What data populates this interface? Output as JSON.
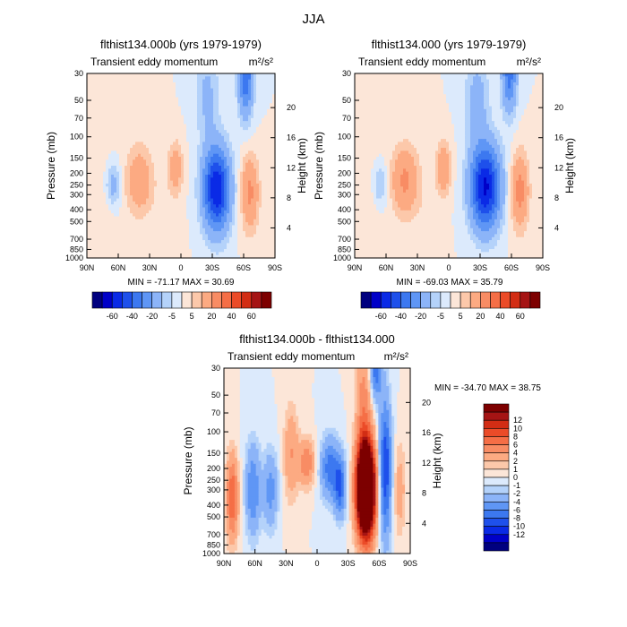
{
  "figure": {
    "title": "JJA"
  },
  "chart_data": [
    {
      "type": "heatmap",
      "title": "flthist134.000b (yrs 1979-1979)",
      "subtitle": "Transient eddy momentum",
      "units": "m²/s²",
      "ylabel": "Pressure (mb)",
      "ylabel_right": "Height (km)",
      "x_ticks": [
        "90N",
        "60N",
        "30N",
        "0",
        "30S",
        "60S",
        "90S"
      ],
      "y_ticks": [
        "30",
        "50",
        "70",
        "100",
        "150",
        "200",
        "250",
        "300",
        "400",
        "500",
        "700",
        "850",
        "1000"
      ],
      "y2_ticks": [
        "20",
        "16",
        "12",
        "8",
        "4"
      ],
      "stats": "MIN = -71.17   MAX =  30.69",
      "min": -71.17,
      "max": 30.69,
      "features": [
        {
          "lat": 65,
          "p": 250,
          "v": -15,
          "wx": 5,
          "wy": 0.28
        },
        {
          "lat": 40,
          "p": 230,
          "v": 18,
          "wx": 9,
          "wy": 0.45
        },
        {
          "lat": 5,
          "p": 180,
          "v": 15,
          "wx": 5,
          "wy": 0.35
        },
        {
          "lat": -34,
          "p": 270,
          "v": -60,
          "wx": 9,
          "wy": 0.55
        },
        {
          "lat": -25,
          "p": 45,
          "v": -12,
          "wx": 8,
          "wy": 0.6
        },
        {
          "lat": -62,
          "p": 30,
          "v": -40,
          "wx": 5,
          "wy": 0.55
        },
        {
          "lat": -66,
          "p": 290,
          "v": 22,
          "wx": 6,
          "wy": 0.5
        },
        {
          "lat": 75,
          "p": 500,
          "v": 4,
          "wx": 8,
          "wy": 1.0
        },
        {
          "lat": 15,
          "p": 600,
          "v": 3,
          "wx": 10,
          "wy": 0.8
        }
      ]
    },
    {
      "type": "heatmap",
      "title": "flthist134.000 (yrs 1979-1979)",
      "subtitle": "Transient eddy momentum",
      "units": "m²/s²",
      "ylabel": "Pressure (mb)",
      "ylabel_right": "Height (km)",
      "x_ticks": [
        "90N",
        "60N",
        "30N",
        "0",
        "30S",
        "60S",
        "90S"
      ],
      "y_ticks": [
        "30",
        "50",
        "70",
        "100",
        "150",
        "200",
        "250",
        "300",
        "400",
        "500",
        "700",
        "850",
        "1000"
      ],
      "y2_ticks": [
        "20",
        "16",
        "12",
        "8",
        "4"
      ],
      "stats": "MIN = -69.03   MAX =  35.79",
      "min": -69.03,
      "max": 35.79,
      "features": [
        {
          "lat": 66,
          "p": 250,
          "v": -12,
          "wx": 5,
          "wy": 0.28
        },
        {
          "lat": 42,
          "p": 230,
          "v": 22,
          "wx": 9,
          "wy": 0.45
        },
        {
          "lat": 5,
          "p": 180,
          "v": 18,
          "wx": 5,
          "wy": 0.35
        },
        {
          "lat": -35,
          "p": 260,
          "v": -62,
          "wx": 10,
          "wy": 0.55
        },
        {
          "lat": -27,
          "p": 50,
          "v": -14,
          "wx": 8,
          "wy": 0.6
        },
        {
          "lat": -58,
          "p": 30,
          "v": -35,
          "wx": 5,
          "wy": 0.5
        },
        {
          "lat": -68,
          "p": 280,
          "v": 24,
          "wx": 6,
          "wy": 0.5
        },
        {
          "lat": 75,
          "p": 500,
          "v": 4,
          "wx": 8,
          "wy": 1.0
        },
        {
          "lat": 20,
          "p": 600,
          "v": 3,
          "wx": 10,
          "wy": 0.8
        }
      ]
    },
    {
      "type": "heatmap",
      "title": "flthist134.000b - flthist134.000",
      "subtitle": "Transient eddy momentum",
      "units": "m²/s²",
      "ylabel": "Pressure (mb)",
      "ylabel_right": "Height (km)",
      "x_ticks": [
        "90N",
        "60N",
        "30N",
        "0",
        "30S",
        "60S",
        "90S"
      ],
      "y_ticks": [
        "30",
        "50",
        "70",
        "100",
        "150",
        "200",
        "250",
        "300",
        "400",
        "500",
        "700",
        "850",
        "1000"
      ],
      "y2_ticks": [
        "20",
        "16",
        "12",
        "8",
        "4"
      ],
      "stats": "MIN = -34.70   MAX =  38.75",
      "min": -34.7,
      "max": 38.75,
      "features": [
        {
          "lat": 82,
          "p": 350,
          "v": 8,
          "wx": 4,
          "wy": 0.55
        },
        {
          "lat": 62,
          "p": 300,
          "v": -6,
          "wx": 5,
          "wy": 0.6
        },
        {
          "lat": 45,
          "p": 300,
          "v": -5,
          "wx": 5,
          "wy": 0.5
        },
        {
          "lat": 10,
          "p": 180,
          "v": 6,
          "wx": 5,
          "wy": 0.3
        },
        {
          "lat": -12,
          "p": 200,
          "v": -7,
          "wx": 6,
          "wy": 0.4
        },
        {
          "lat": -22,
          "p": 280,
          "v": -8,
          "wx": 4,
          "wy": 0.4
        },
        {
          "lat": -47,
          "p": 300,
          "v": 36,
          "wx": 6,
          "wy": 0.6
        },
        {
          "lat": -45,
          "p": 60,
          "v": 5,
          "wx": 5,
          "wy": 0.8
        },
        {
          "lat": -66,
          "p": 200,
          "v": -10,
          "wx": 4,
          "wy": 0.9
        },
        {
          "lat": -57,
          "p": 30,
          "v": -8,
          "wx": 4,
          "wy": 0.4
        },
        {
          "lat": 25,
          "p": 150,
          "v": 4,
          "wx": 5,
          "wy": 0.6
        },
        {
          "lat": -80,
          "p": 300,
          "v": 3,
          "wx": 4,
          "wy": 0.6
        }
      ]
    }
  ],
  "colorbars": {
    "top": {
      "levels": [
        -70,
        -60,
        -50,
        -40,
        -30,
        -20,
        -10,
        -5,
        0,
        5,
        10,
        20,
        30,
        40,
        50,
        60,
        70
      ],
      "labels": [
        "-60",
        "-40",
        "-20",
        "-5",
        "5",
        "20",
        "40",
        "60"
      ],
      "colors": [
        "#00007f",
        "#0000c8",
        "#0a2ae6",
        "#1e50eb",
        "#3c78f0",
        "#5f96f5",
        "#8cb4f8",
        "#b4d2fa",
        "#dceafc",
        "#fce6d8",
        "#fcc8aa",
        "#fcaa82",
        "#f88c64",
        "#f56e46",
        "#eb4b28",
        "#d22d14",
        "#a51414",
        "#7d0000"
      ]
    },
    "bottom": {
      "levels": [
        -14,
        -12,
        -10,
        -8,
        -6,
        -4,
        -2,
        -1,
        0,
        1,
        2,
        4,
        6,
        8,
        10,
        12,
        14
      ],
      "labels": [
        "12",
        "10",
        "8",
        "6",
        "4",
        "2",
        "1",
        "0",
        "-1",
        "-2",
        "-4",
        "-6",
        "-8",
        "-10",
        "-12"
      ],
      "colors": [
        "#00007f",
        "#0000c8",
        "#0a2ae6",
        "#1e50eb",
        "#3c78f0",
        "#5f96f5",
        "#8cb4f8",
        "#b4d2fa",
        "#dceafc",
        "#fce6d8",
        "#fcc8aa",
        "#fcaa82",
        "#f88c64",
        "#f56e46",
        "#eb4b28",
        "#d22d14",
        "#a51414",
        "#7d0000"
      ]
    }
  }
}
